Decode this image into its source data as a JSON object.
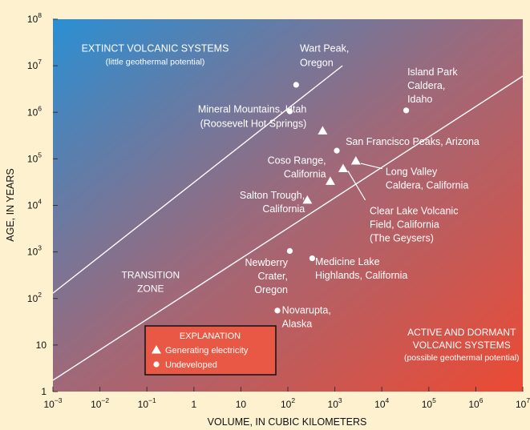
{
  "chart_data": {
    "type": "scatter",
    "x_scale": "log",
    "y_scale": "log",
    "xlim": [
      0.001,
      10000000
    ],
    "ylim": [
      1,
      100000000
    ],
    "xlabel": "VOLUME, IN CUBIC KILOMETERS",
    "ylabel": "AGE, IN YEARS",
    "x_ticks": [
      {
        "value": 0.001,
        "base": "10",
        "exp": "−3"
      },
      {
        "value": 0.01,
        "base": "10",
        "exp": "−2"
      },
      {
        "value": 0.1,
        "base": "10",
        "exp": "−1"
      },
      {
        "value": 1,
        "base": "1",
        "exp": ""
      },
      {
        "value": 10,
        "base": "10",
        "exp": ""
      },
      {
        "value": 100,
        "base": "10",
        "exp": "2"
      },
      {
        "value": 1000,
        "base": "10",
        "exp": "3"
      },
      {
        "value": 10000,
        "base": "10",
        "exp": "4"
      },
      {
        "value": 100000,
        "base": "10",
        "exp": "5"
      },
      {
        "value": 1000000,
        "base": "10",
        "exp": "6"
      },
      {
        "value": 10000000,
        "base": "10",
        "exp": "7"
      }
    ],
    "y_ticks": [
      {
        "value": 1,
        "base": "1",
        "exp": ""
      },
      {
        "value": 10,
        "base": "10",
        "exp": ""
      },
      {
        "value": 100,
        "base": "10",
        "exp": "2"
      },
      {
        "value": 1000,
        "base": "10",
        "exp": "3"
      },
      {
        "value": 10000,
        "base": "10",
        "exp": "4"
      },
      {
        "value": 100000,
        "base": "10",
        "exp": "5"
      },
      {
        "value": 1000000,
        "base": "10",
        "exp": "6"
      },
      {
        "value": 10000000,
        "base": "10",
        "exp": "7"
      },
      {
        "value": 100000000,
        "base": "10",
        "exp": "8"
      }
    ],
    "boundary_lines": [
      {
        "from": [
          0.001,
          130
        ],
        "to": [
          1450,
          10000000
        ]
      },
      {
        "from": [
          0.001,
          1.75
        ],
        "to": [
          10000000,
          6000000
        ]
      }
    ],
    "points": [
      {
        "marker": "circle",
        "x": 150,
        "y": 3900000,
        "label": [
          "Wart Peak,",
          "Oregon"
        ],
        "label_anchor": "start",
        "label_pos": [
          180,
          20000000
        ],
        "label_dy": [
          0,
          18
        ]
      },
      {
        "marker": "circle",
        "x": 33000,
        "y": 1100000,
        "label": [
          "Island Park",
          "Caldera,",
          "Idaho"
        ],
        "label_anchor": "start",
        "label_pos": [
          35000,
          6300000
        ],
        "label_dy": [
          0,
          17,
          17
        ]
      },
      {
        "marker": "triangle",
        "x": 550,
        "y": 400000,
        "label": [
          "Mineral Mountains, Utah",
          "(Roosevelt Hot Springs)"
        ],
        "label_anchor": "end",
        "label_pos": [
          250,
          1000000
        ],
        "label_dy": [
          0,
          18
        ]
      },
      {
        "marker": "circle",
        "x": 1100,
        "y": 150000,
        "label": [
          "San Francisco Peaks, Arizona"
        ],
        "label_anchor": "start",
        "label_pos": [
          1700,
          200000
        ],
        "label_dy": [
          0
        ]
      },
      {
        "marker": "triangle",
        "x": 2800,
        "y": 90000,
        "label": [
          "Long Valley",
          "Caldera, California"
        ],
        "label_anchor": "start",
        "label_pos": [
          12000,
          45000
        ],
        "label_dy": [
          0,
          17
        ]
      },
      {
        "marker": "triangle",
        "x": 1500,
        "y": 62000,
        "label": [
          "Clear Lake Volcanic",
          "Field, California",
          "(The Geysers)"
        ],
        "label_anchor": "start",
        "label_pos": [
          5500,
          6500
        ],
        "label_dy": [
          0,
          17,
          17
        ]
      },
      {
        "marker": "triangle",
        "x": 800,
        "y": 33000,
        "label": [
          "Coso Range,",
          "California"
        ],
        "label_anchor": "end",
        "label_pos": [
          650,
          78000
        ],
        "label_dy": [
          0,
          17
        ]
      },
      {
        "marker": "triangle",
        "x": 260,
        "y": 13000,
        "label": [
          "Salton Trough,",
          "California"
        ],
        "label_anchor": "end",
        "label_pos": [
          230,
          14000
        ],
        "label_dy": [
          0,
          17
        ]
      },
      {
        "marker": "circle",
        "x": 110,
        "y": 1050000,
        "label": [],
        "label_anchor": "start",
        "label_pos": [
          0,
          0
        ],
        "label_dy": []
      },
      {
        "marker": "circle",
        "x": 110,
        "y": 1050,
        "label": [
          "Newberry",
          "Crater,",
          "Oregon"
        ],
        "label_anchor": "end",
        "label_pos": [
          100,
          500
        ],
        "label_dy": [
          0,
          17,
          17
        ]
      },
      {
        "marker": "circle",
        "x": 330,
        "y": 730,
        "label": [
          "Medicine Lake",
          "Highlands, California"
        ],
        "label_anchor": "start",
        "label_pos": [
          380,
          520
        ],
        "label_dy": [
          0,
          17
        ]
      },
      {
        "marker": "circle",
        "x": 60,
        "y": 55,
        "label": [
          "Novarupta,",
          "Alaska"
        ],
        "label_anchor": "start",
        "label_pos": [
          75,
          48
        ],
        "label_dy": [
          0,
          17
        ]
      }
    ],
    "regions": [
      {
        "lines": [
          "EXTINCT VOLCANIC SYSTEMS",
          "(little geothermal potential)"
        ],
        "sizes": [
          12.5,
          10.5
        ],
        "anchor": "middle",
        "pos": [
          0.15,
          20000000
        ],
        "dy": [
          0,
          16
        ]
      },
      {
        "lines": [
          "TRANSITION",
          "ZONE"
        ],
        "sizes": [
          12,
          12
        ],
        "anchor": "middle",
        "pos": [
          0.12,
          270
        ],
        "dy": [
          0,
          17
        ]
      },
      {
        "lines": [
          "ACTIVE AND DORMANT",
          "VOLCANIC SYSTEMS",
          "(possible geothermal potential)"
        ],
        "sizes": [
          12,
          12,
          10.5
        ],
        "anchor": "middle",
        "pos": [
          500000,
          16
        ],
        "dy": [
          0,
          16,
          15
        ]
      }
    ],
    "legend": {
      "title": "EXPLANATION",
      "placement": "bottom-left",
      "items": [
        {
          "marker": "triangle",
          "label": "Generating electricity"
        },
        {
          "marker": "circle",
          "label": "Undeveloped"
        }
      ]
    },
    "colors": {
      "background": "#fdf1cf",
      "gradient_top_left": "#2a8fd3",
      "gradient_mid": "#a06878",
      "gradient_bottom_right": "#ec4a33",
      "legend_fill": "#e85845",
      "marks": "#ffffff"
    }
  }
}
